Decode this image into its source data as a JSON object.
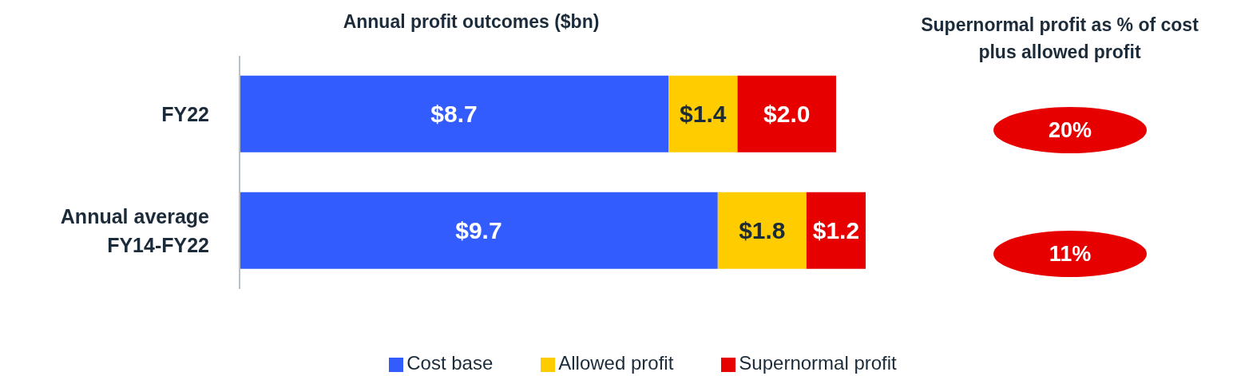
{
  "chart_data": [
    {
      "type": "bar",
      "orientation": "horizontal",
      "stacked": true,
      "title": "Annual profit outcomes ($bn)",
      "categories": [
        "FY22",
        "Annual average FY14-FY22"
      ],
      "legend": "bottom",
      "series": [
        {
          "name": "Cost base",
          "color": "#335cff",
          "values": [
            8.7,
            9.7
          ],
          "value_labels": [
            "$8.7",
            "$9.7"
          ]
        },
        {
          "name": "Allowed profit",
          "color": "#ffcc00",
          "values": [
            1.4,
            1.8
          ],
          "value_labels": [
            "$1.4",
            "$1.8"
          ]
        },
        {
          "name": "Supernormal profit",
          "color": "#e60000",
          "values": [
            2.0,
            1.2
          ],
          "value_labels": [
            "$2.0",
            "$1.2"
          ]
        }
      ]
    },
    {
      "type": "other",
      "title": "Supernormal profit as % of cost plus allowed profit",
      "annotations": [
        "20%",
        "11%"
      ],
      "color": "#e60000"
    }
  ]
}
